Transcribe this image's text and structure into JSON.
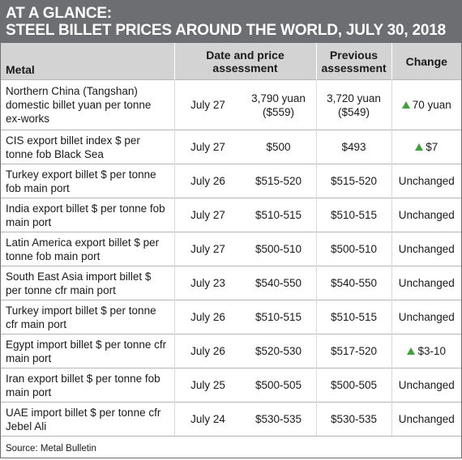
{
  "header": {
    "line1": "AT A GLANCE:",
    "line2": "STEEL BILLET PRICES AROUND THE WORLD, JULY 30, 2018"
  },
  "columns": {
    "metal": "Metal",
    "date_price": "Date and price assessment",
    "previous": "Previous assessment",
    "change": "Change"
  },
  "rows": [
    {
      "metal": "Northern China (Tangshan) domestic billet yuan per tonne ex-works",
      "date": "July 27",
      "price": "3,790 yuan ($559)",
      "previous": "3,720 yuan ($549)",
      "change": "70 yuan",
      "up": true
    },
    {
      "metal": "CIS export billet index $ per tonne fob Black Sea",
      "date": "July 27",
      "price": "$500",
      "previous": "$493",
      "change": "$7",
      "up": true
    },
    {
      "metal": "Turkey export billet $ per tonne fob main port",
      "date": "July 26",
      "price": "$515-520",
      "previous": "$515-520",
      "change": "Unchanged",
      "up": false
    },
    {
      "metal": "India export billet $ per tonne fob main port",
      "date": "July 27",
      "price": "$510-515",
      "previous": "$510-515",
      "change": "Unchanged",
      "up": false
    },
    {
      "metal": "Latin America export billet $ per tonne fob main port",
      "date": "July 27",
      "price": "$500-510",
      "previous": "$500-510",
      "change": "Unchanged",
      "up": false
    },
    {
      "metal": "South East Asia import billet $ per tonne cfr main port",
      "date": "July 23",
      "price": "$540-550",
      "previous": "$540-550",
      "change": "Unchanged",
      "up": false
    },
    {
      "metal": "Turkey import billet $ per tonne cfr main port",
      "date": "July 26",
      "price": "$510-515",
      "previous": "$510-515",
      "change": "Unchanged",
      "up": false
    },
    {
      "metal": "Egypt import billet $ per tonne cfr main port",
      "date": "July 26",
      "price": "$520-530",
      "previous": "$517-520",
      "change": "$3-10",
      "up": true
    },
    {
      "metal": "Iran export billet $ per tonne fob main port",
      "date": "July 25",
      "price": "$500-505",
      "previous": "$500-505",
      "change": "Unchanged",
      "up": false
    },
    {
      "metal": "UAE import billet $ per tonne cfr Jebel Ali",
      "date": "July 24",
      "price": "$530-535",
      "previous": "$530-535",
      "change": "Unchanged",
      "up": false
    }
  ],
  "source": "Source: Metal Bulletin",
  "colors": {
    "title_bg": "#6d6e71",
    "header_bg": "#d3d3d4",
    "up_arrow": "#3ca23c"
  },
  "icons": {
    "up": "up-triangle-icon"
  }
}
